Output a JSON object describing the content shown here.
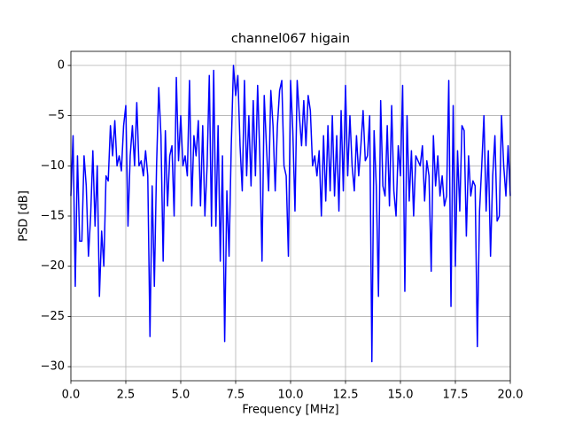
{
  "chart_data": {
    "type": "line",
    "title": "channel067 higain",
    "xlabel": "Frequency [MHz]",
    "ylabel": "PSD [dB]",
    "color": "#0000ff",
    "grid": true,
    "xlim": [
      0,
      20
    ],
    "ylim": [
      -31.4,
      1.4
    ],
    "xticks": [
      {
        "value": 0,
        "label": "0.0"
      },
      2.5,
      {
        "value": 5,
        "label": "5.0"
      },
      7.5,
      {
        "value": 10,
        "label": "10.0"
      },
      12.5,
      {
        "value": 15,
        "label": "15.0"
      },
      17.5,
      {
        "value": 20,
        "label": "20.0"
      }
    ],
    "yticks": [
      {
        "value": -30,
        "label": "−30"
      },
      {
        "value": -25,
        "label": "−25"
      },
      {
        "value": -20,
        "label": "−20"
      },
      {
        "value": -15,
        "label": "−15"
      },
      {
        "value": -10,
        "label": "−10"
      },
      {
        "value": -5,
        "label": "−5"
      },
      0
    ],
    "x": [
      0,
      0.1,
      0.2,
      0.3,
      0.4,
      0.5,
      0.6,
      0.7,
      0.8,
      0.9,
      1,
      1.1,
      1.2,
      1.3,
      1.4,
      1.5,
      1.6,
      1.7,
      1.8,
      1.9,
      2,
      2.1,
      2.2,
      2.3,
      2.4,
      2.5,
      2.6,
      2.7,
      2.8,
      2.9,
      3,
      3.1,
      3.2,
      3.3,
      3.4,
      3.5,
      3.6,
      3.7,
      3.8,
      3.9,
      4,
      4.1,
      4.2,
      4.3,
      4.4,
      4.5,
      4.6,
      4.7,
      4.8,
      4.9,
      5,
      5.1,
      5.2,
      5.3,
      5.4,
      5.5,
      5.6,
      5.7,
      5.8,
      5.9,
      6,
      6.1,
      6.2,
      6.3,
      6.4,
      6.5,
      6.6,
      6.7,
      6.8,
      6.9,
      7,
      7.1,
      7.2,
      7.3,
      7.4,
      7.5,
      7.6,
      7.7,
      7.8,
      7.9,
      8,
      8.1,
      8.2,
      8.3,
      8.4,
      8.5,
      8.6,
      8.7,
      8.8,
      8.9,
      9,
      9.1,
      9.2,
      9.3,
      9.4,
      9.5,
      9.6,
      9.7,
      9.8,
      9.9,
      10,
      10.1,
      10.2,
      10.3,
      10.4,
      10.5,
      10.6,
      10.7,
      10.8,
      10.9,
      11,
      11.1,
      11.2,
      11.3,
      11.4,
      11.5,
      11.6,
      11.7,
      11.8,
      11.9,
      12,
      12.1,
      12.2,
      12.3,
      12.4,
      12.5,
      12.6,
      12.7,
      12.8,
      12.9,
      13,
      13.1,
      13.2,
      13.3,
      13.4,
      13.5,
      13.6,
      13.7,
      13.8,
      13.9,
      14,
      14.1,
      14.2,
      14.3,
      14.4,
      14.5,
      14.6,
      14.7,
      14.8,
      14.9,
      15,
      15.1,
      15.2,
      15.3,
      15.4,
      15.5,
      15.6,
      15.7,
      15.8,
      15.9,
      16,
      16.1,
      16.2,
      16.3,
      16.4,
      16.5,
      16.6,
      16.7,
      16.8,
      16.9,
      17,
      17.1,
      17.2,
      17.3,
      17.4,
      17.5,
      17.6,
      17.7,
      17.8,
      17.9,
      18,
      18.1,
      18.2,
      18.3,
      18.4,
      18.5,
      18.6,
      18.7,
      18.8,
      18.9,
      19,
      19.1,
      19.2,
      19.3,
      19.4,
      19.5,
      19.6,
      19.7,
      19.8,
      19.9,
      20
    ],
    "values": [
      -13,
      -7,
      -22,
      -9,
      -17.5,
      -17.5,
      -9,
      -12,
      -19,
      -15,
      -8.5,
      -16,
      -10,
      -23,
      -16.5,
      -20,
      -11,
      -11.5,
      -6,
      -9,
      -5.5,
      -10,
      -9,
      -10.5,
      -6,
      -4,
      -16,
      -9,
      -6,
      -10,
      -3.7,
      -10,
      -9.5,
      -11,
      -8.5,
      -11,
      -27,
      -12,
      -22,
      -10,
      -2.2,
      -7,
      -19.5,
      -6.5,
      -14,
      -9,
      -8,
      -15,
      -1.2,
      -9.5,
      -5,
      -10,
      -9,
      -11,
      -1.5,
      -14,
      -7,
      -9,
      -5.5,
      -14,
      -6,
      -15,
      -10,
      -1,
      -16,
      -0.5,
      -16,
      -6,
      -19.5,
      -9,
      -27.5,
      -12.5,
      -19,
      -8,
      0,
      -3,
      -1,
      -8,
      -12.5,
      -1.5,
      -11,
      -5,
      -12,
      -3.5,
      -11,
      -2,
      -9,
      -19.5,
      -3,
      -8,
      -12.5,
      -2.5,
      -6,
      -12.5,
      -6,
      -2.5,
      -1.5,
      -10,
      -11,
      -19,
      -1.5,
      -6.5,
      -14.5,
      -1.5,
      -5,
      -8,
      -3.5,
      -8,
      -3,
      -4.5,
      -10,
      -9,
      -11,
      -8.5,
      -15,
      -7,
      -13.5,
      -6,
      -12.5,
      -5,
      -13,
      -7,
      -14.5,
      -4.5,
      -12.5,
      -2,
      -11,
      -5,
      -10,
      -12.5,
      -7,
      -11,
      -8,
      -4.5,
      -9.5,
      -9,
      -5,
      -29.5,
      -6.5,
      -12,
      -23,
      -3.5,
      -12,
      -13,
      -6,
      -14,
      -4,
      -12.5,
      -15,
      -8,
      -11,
      -2,
      -22.5,
      -5,
      -13.5,
      -8.5,
      -15,
      -9,
      -9.5,
      -10,
      -8,
      -13.5,
      -9.5,
      -11,
      -20.5,
      -7,
      -12,
      -9,
      -13,
      -11,
      -14,
      -13,
      -1.5,
      -24,
      -4,
      -20,
      -8.5,
      -14.5,
      -6,
      -6.5,
      -17,
      -9,
      -13,
      -11.5,
      -12,
      -28,
      -14.5,
      -10,
      -5,
      -14.5,
      -8.5,
      -19,
      -11,
      -7,
      -15.5,
      -15,
      -5,
      -10,
      -13,
      -8,
      -13
    ]
  }
}
